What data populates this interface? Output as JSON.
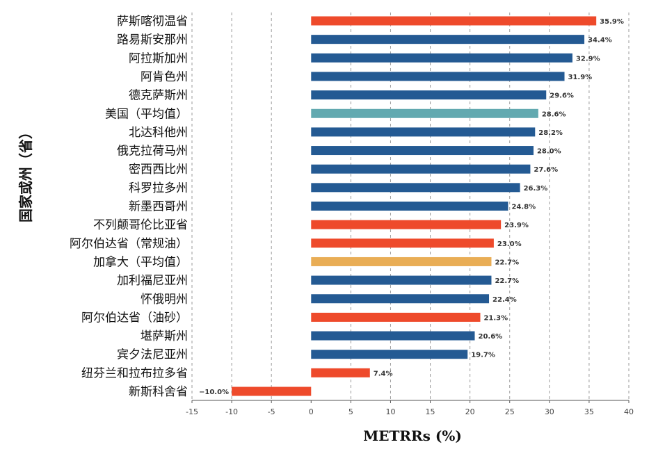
{
  "chart_data": {
    "type": "bar",
    "orientation": "horizontal",
    "title": "",
    "xlabel": "METRRs (%)",
    "ylabel": "国家或州（省）",
    "xlim": [
      -15,
      40
    ],
    "xticks": [
      -15,
      -10,
      -5,
      0,
      5,
      10,
      15,
      20,
      25,
      30,
      35,
      40
    ],
    "grid": "vertical dashed",
    "legend": "none",
    "colors": {
      "us_state": "#245a93",
      "canada_province": "#ee4a2b",
      "us_average": "#62a9b0",
      "canada_average": "#e9ad55"
    },
    "categories": [
      "萨斯喀彻温省",
      "路易斯安那州",
      "阿拉斯加州",
      "阿肯色州",
      "德克萨斯州",
      "美国（平均值）",
      "北达科他州",
      "俄克拉荷马州",
      "密西西比州",
      "科罗拉多州",
      "新墨西哥州",
      "不列颠哥伦比亚省",
      "阿尔伯达省（常规油）",
      "加拿大（平均值）",
      "加利福尼亚州",
      "怀俄明州",
      "阿尔伯达省（油砂）",
      "堪萨斯州",
      "宾夕法尼亚州",
      "纽芬兰和拉布拉多省",
      "新斯科舍省"
    ],
    "values": [
      35.9,
      34.4,
      32.9,
      31.9,
      29.6,
      28.6,
      28.2,
      28.0,
      27.6,
      26.3,
      24.8,
      23.9,
      23.0,
      22.7,
      22.7,
      22.4,
      21.3,
      20.6,
      19.7,
      7.4,
      -10.0
    ],
    "value_labels": [
      "35.9%",
      "34.4%",
      "32.9%",
      "31.9%",
      "29.6%",
      "28.6%",
      "28.2%",
      "28.0%",
      "27.6%",
      "26.3%",
      "24.8%",
      "23.9%",
      "23.0%",
      "22.7%",
      "22.7%",
      "22.4%",
      "21.3%",
      "20.6%",
      "19.7%",
      "7.4%",
      "−10.0%"
    ],
    "bar_groups": [
      "canada_province",
      "us_state",
      "us_state",
      "us_state",
      "us_state",
      "us_average",
      "us_state",
      "us_state",
      "us_state",
      "us_state",
      "us_state",
      "canada_province",
      "canada_province",
      "canada_average",
      "us_state",
      "us_state",
      "canada_province",
      "us_state",
      "us_state",
      "canada_province",
      "canada_province"
    ]
  }
}
